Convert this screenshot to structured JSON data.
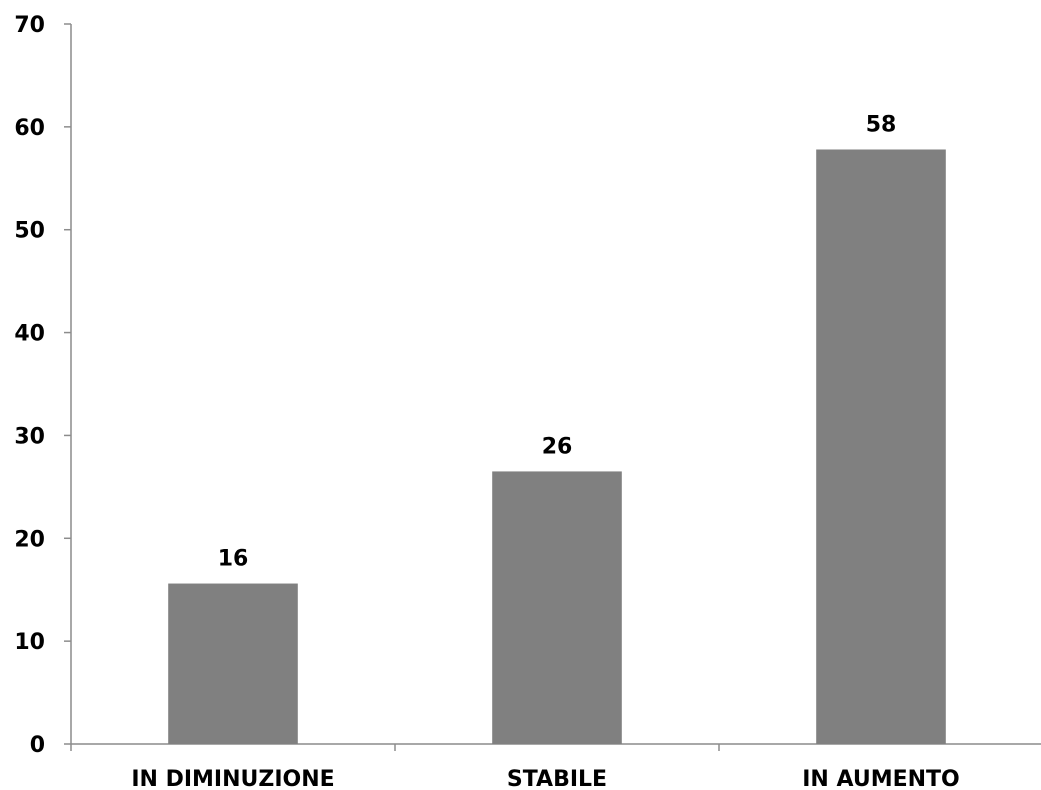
{
  "chart_data": {
    "type": "bar",
    "categories": [
      "IN DIMINUZIONE",
      "STABILE",
      "IN AUMENTO"
    ],
    "values": [
      15.6,
      26.5,
      57.8
    ],
    "data_labels": [
      "16",
      "26",
      "58"
    ],
    "title": "",
    "xlabel": "",
    "ylabel": "",
    "ylim": [
      0,
      70
    ],
    "yticks": [
      0,
      10,
      20,
      30,
      40,
      50,
      60,
      70
    ],
    "ytick_labels": [
      "0",
      "10",
      "20",
      "30",
      "40",
      "50",
      "60",
      "70"
    ],
    "grid": false,
    "legend": "none",
    "colors": {
      "bar": "#808080",
      "axis": "#8c8c8c",
      "text": "#000000"
    }
  }
}
